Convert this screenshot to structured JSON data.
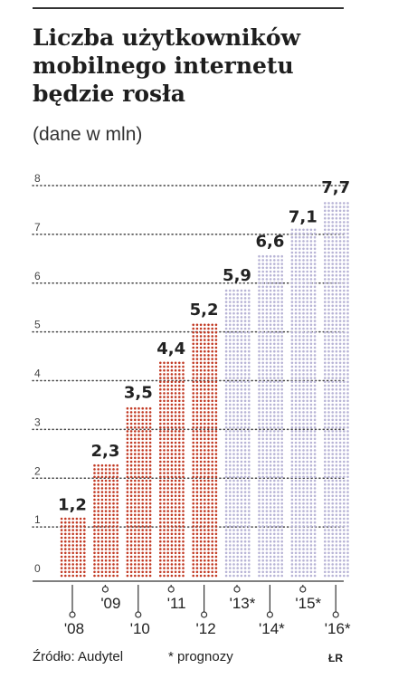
{
  "title": "Liczba użytkowników mobilnego internetu będzie rosła",
  "subtitle": "(dane w mln)",
  "source": "Źródło: Audytel",
  "note": "* prognozy",
  "signature": "ŁR",
  "colors": {
    "actual": "#c23a24",
    "forecast": "#b8b4d6",
    "grid": "#444444",
    "text": "#222222"
  },
  "chart_data": {
    "type": "bar",
    "title": "Liczba użytkowników mobilnego internetu będzie rosła",
    "subtitle": "(dane w mln)",
    "categories": [
      "'08",
      "'09",
      "'10",
      "'11",
      "'12",
      "'13*",
      "'14*",
      "'15*",
      "'16*"
    ],
    "values": [
      1.2,
      2.3,
      3.5,
      4.4,
      5.2,
      5.9,
      6.6,
      7.1,
      7.7
    ],
    "value_labels": [
      "1,2",
      "2,3",
      "3,5",
      "4,4",
      "5,2",
      "5,9",
      "6,6",
      "7,1",
      "7,7"
    ],
    "forecast": [
      false,
      false,
      false,
      false,
      false,
      true,
      true,
      true,
      true
    ],
    "ylim": [
      0,
      8
    ],
    "yticks": [
      "0",
      "1",
      "2",
      "3",
      "4",
      "5",
      "6",
      "7",
      "8"
    ],
    "grid": true,
    "xlabel": "",
    "ylabel": ""
  }
}
